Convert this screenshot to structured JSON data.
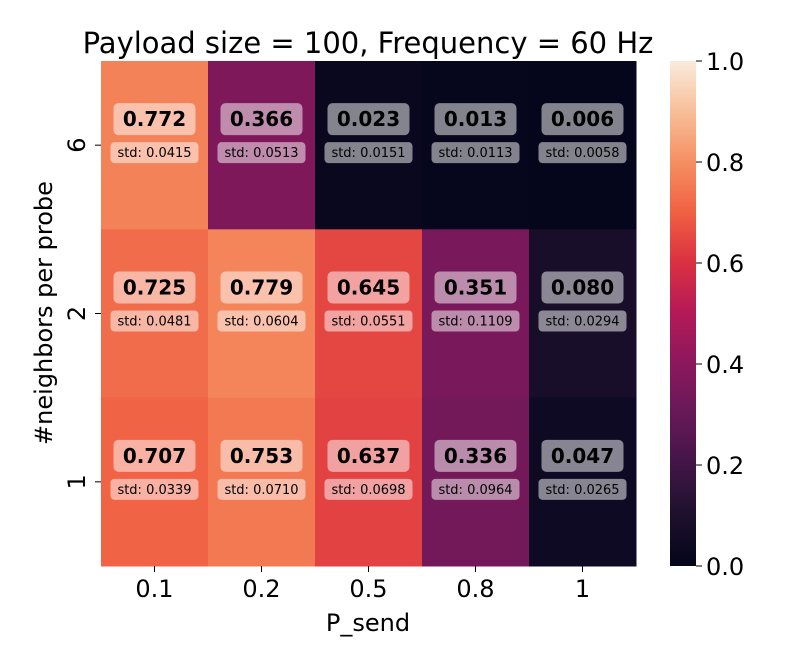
{
  "chart_data": {
    "type": "heatmap",
    "title": "Payload size = 100, Frequency = 60 Hz",
    "xlabel": "P_send",
    "ylabel": "#neighbors per probe",
    "x_categories": [
      "0.1",
      "0.2",
      "0.5",
      "0.8",
      "1"
    ],
    "y_categories": [
      "6",
      "2",
      "1"
    ],
    "values": [
      [
        0.772,
        0.366,
        0.023,
        0.013,
        0.006
      ],
      [
        0.725,
        0.779,
        0.645,
        0.351,
        0.08
      ],
      [
        0.707,
        0.753,
        0.637,
        0.336,
        0.047
      ]
    ],
    "std": [
      [
        0.0415,
        0.0513,
        0.0151,
        0.0113,
        0.0058
      ],
      [
        0.0481,
        0.0604,
        0.0551,
        0.1109,
        0.0294
      ],
      [
        0.0339,
        0.071,
        0.0698,
        0.0964,
        0.0265
      ]
    ],
    "value_labels": [
      [
        "0.772",
        "0.366",
        "0.023",
        "0.013",
        "0.006"
      ],
      [
        "0.725",
        "0.779",
        "0.645",
        "0.351",
        "0.080"
      ],
      [
        "0.707",
        "0.753",
        "0.637",
        "0.336",
        "0.047"
      ]
    ],
    "std_labels": [
      [
        "std: 0.0415",
        "std: 0.0513",
        "std: 0.0151",
        "std: 0.0113",
        "std: 0.0058"
      ],
      [
        "std: 0.0481",
        "std: 0.0604",
        "std: 0.0551",
        "std: 0.1109",
        "std: 0.0294"
      ],
      [
        "std: 0.0339",
        "std: 0.0710",
        "std: 0.0698",
        "std: 0.0964",
        "std: 0.0265"
      ]
    ],
    "colorbar": {
      "min": 0.0,
      "max": 1.0,
      "ticks": [
        "0.0",
        "0.2",
        "0.4",
        "0.6",
        "0.8",
        "1.0"
      ],
      "colormap": "rocket"
    }
  }
}
